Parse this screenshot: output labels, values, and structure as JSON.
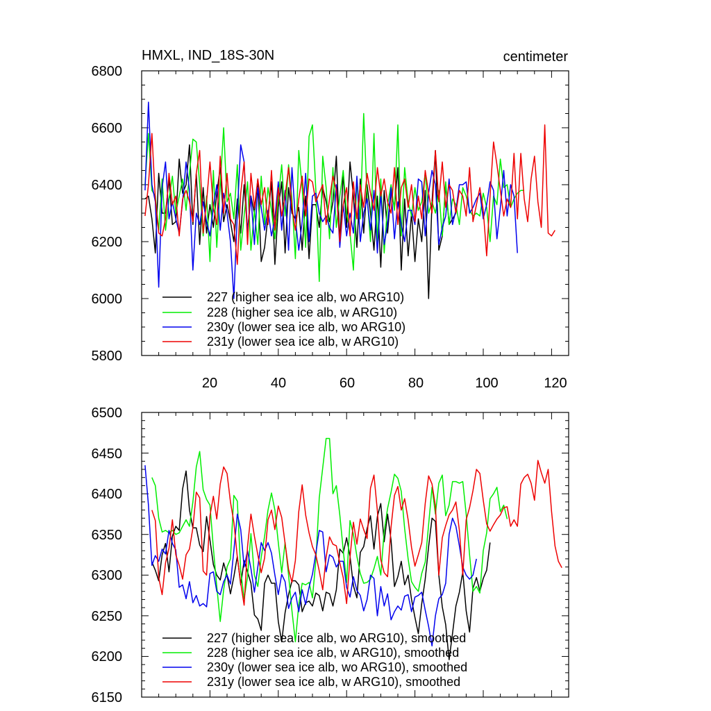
{
  "chart_data": [
    {
      "type": "line",
      "title_left": "HMXL, IND_18S-30N",
      "title_right": "centimeter",
      "xlabel": "",
      "ylabel": "",
      "xlim": [
        0,
        125
      ],
      "ylim": [
        5800,
        6800
      ],
      "x_major_ticks": [
        20,
        40,
        60,
        80,
        100,
        120
      ],
      "x_tick_labels": [
        "20",
        "40",
        "60",
        "80",
        "100",
        "120"
      ],
      "y_major_ticks": [
        5800,
        6000,
        6200,
        6400,
        6600,
        6800
      ],
      "y_tick_labels": [
        "5800",
        "6000",
        "6200",
        "6400",
        "6600",
        "6800"
      ],
      "legend_position": "bottom-left",
      "series": [
        {
          "name": "227 (higher sea ice alb, wo ARG10)",
          "color": "#000000",
          "x_start": 1,
          "values": [
            6350,
            6360,
            6280,
            6160,
            6440,
            6300,
            6300,
            6420,
            6260,
            6270,
            6490,
            6370,
            6400,
            6540,
            6260,
            6440,
            6190,
            6390,
            6230,
            6330,
            6250,
            6370,
            6460,
            6270,
            6330,
            6270,
            6200,
            6350,
            6230,
            6400,
            6240,
            6360,
            6300,
            6420,
            6130,
            6180,
            6290,
            6410,
            6120,
            6320,
            6410,
            6160,
            6390,
            6300,
            6280,
            6320,
            6170,
            6360,
            6140,
            6330,
            6330,
            6250,
            6390,
            6340,
            6270,
            6340,
            6500,
            6200,
            6440,
            6250,
            6480,
            6360,
            6180,
            6420,
            6230,
            6400,
            6300,
            6170,
            6360,
            6110,
            6380,
            6230,
            6380,
            6320,
            6460,
            6100,
            6350,
            6150,
            6300,
            6130,
            6280,
            6200,
            6380,
            6000,
            6340,
            6520,
            6170,
            6220,
            6400,
            6260,
            6280,
            6300
          ]
        },
        {
          "name": "228 (higher sea ice alb, w ARG10)",
          "color": "#00ee00",
          "x_start": 1,
          "values": [
            6400,
            6580,
            6380,
            6360,
            6240,
            6420,
            6240,
            6350,
            6430,
            6300,
            6360,
            6420,
            6310,
            6440,
            6560,
            6550,
            6400,
            6220,
            6360,
            6130,
            6450,
            6180,
            6400,
            6600,
            6340,
            6370,
            6280,
            6470,
            6170,
            6290,
            6410,
            6170,
            6310,
            6190,
            6430,
            6260,
            6390,
            6310,
            6210,
            6350,
            6470,
            6290,
            6470,
            6350,
            6140,
            6520,
            6390,
            6180,
            6570,
            6610,
            6380,
            6060,
            6500,
            6390,
            6210,
            6460,
            6250,
            6360,
            6450,
            6300,
            6230,
            6100,
            6420,
            6280,
            6650,
            6360,
            6200,
            6580,
            6200,
            6420,
            6160,
            6330,
            6400,
            6310,
            6610,
            6220,
            6460,
            6340,
            6290,
            6390,
            6310,
            6340,
            6440,
            6300,
            6340,
            6300,
            6380,
            6220,
            6410,
            6260,
            6350,
            6330,
            6260,
            6390,
            6360,
            6310,
            6290,
            6300,
            6290,
            6370,
            6320,
            6200,
            6360,
            6330,
            6490,
            6390,
            6400,
            6320,
            6350,
            6370,
            6380,
            6380
          ]
        },
        {
          "name": "230y (lower sea ice alb, wo ARG10)",
          "color": "#0000ee",
          "x_start": 1,
          "values": [
            6380,
            6690,
            6400,
            6340,
            6040,
            6390,
            6480,
            6280,
            6340,
            6280,
            6230,
            6340,
            6480,
            6380,
            6100,
            6300,
            6260,
            6340,
            6270,
            6220,
            6320,
            6400,
            6240,
            6370,
            6300,
            6200,
            6000,
            6300,
            6540,
            6480,
            6230,
            6360,
            6190,
            6390,
            6320,
            6240,
            6310,
            6220,
            6280,
            6410,
            6240,
            6380,
            6170,
            6460,
            6280,
            6170,
            6270,
            6440,
            6200,
            6360,
            6370,
            6300,
            6270,
            6290,
            6250,
            6230,
            6400,
            6180,
            6330,
            6220,
            6300,
            6230,
            6430,
            6200,
            6300,
            6350,
            6240,
            6380,
            6160,
            6370,
            6190,
            6260,
            6390,
            6210,
            6340,
            6260,
            6200,
            6310,
            6310,
            6260,
            6420,
            6410,
            6220,
            6370,
            6450,
            6400,
            6190,
            6250,
            6290,
            6420,
            6260,
            6310,
            6400,
            6400,
            6410,
            6300,
            6320,
            6350,
            6370,
            6280,
            6330,
            6410,
            6380,
            6210,
            6320,
            6450,
            6290,
            6400,
            6360,
            6160
          ]
        },
        {
          "name": "231y (lower sea ice alb, w ARG10)",
          "color": "#ee0000",
          "x_start": 1,
          "values": [
            6290,
            6400,
            6580,
            6350,
            6230,
            6220,
            6280,
            6440,
            6330,
            6360,
            6220,
            6350,
            6380,
            6340,
            6270,
            6440,
            6520,
            6230,
            6340,
            6480,
            6320,
            6260,
            6500,
            6300,
            6440,
            6280,
            6260,
            6120,
            6370,
            6480,
            6190,
            6440,
            6320,
            6420,
            6330,
            6390,
            6260,
            6450,
            6240,
            6390,
            6290,
            6360,
            6460,
            6320,
            6240,
            6350,
            6430,
            6290,
            6420,
            6410,
            6340,
            6370,
            6400,
            6260,
            6350,
            6430,
            6380,
            6200,
            6330,
            6390,
            6220,
            6410,
            6280,
            6400,
            6320,
            6440,
            6370,
            6310,
            6460,
            6360,
            6420,
            6340,
            6300,
            6460,
            6260,
            6390,
            6420,
            6320,
            6400,
            6270,
            6360,
            6280,
            6450,
            6370,
            6300,
            6520,
            6340,
            6480,
            6320,
            6400,
            6380,
            6300,
            6380,
            6360,
            6290,
            6460,
            6270,
            6330,
            6390,
            6310,
            6150,
            6360,
            6550,
            6470,
            6380,
            6290,
            6350,
            6320,
            6510,
            6280,
            6510,
            6350,
            6270,
            6420,
            6500,
            6340,
            6250,
            6610,
            6230,
            6220,
            6240
          ]
        }
      ]
    },
    {
      "type": "line",
      "xlabel": "",
      "ylabel": "",
      "xlim": [
        0,
        125
      ],
      "ylim": [
        6150,
        6500
      ],
      "x_major_ticks": [
        20,
        40,
        60,
        80,
        100,
        120
      ],
      "y_major_ticks": [
        6150,
        6200,
        6250,
        6300,
        6350,
        6400,
        6450,
        6500
      ],
      "y_tick_labels": [
        "6150",
        "6200",
        "6250",
        "6300",
        "6350",
        "6400",
        "6450",
        "6500"
      ],
      "legend_position": "bottom-left",
      "series": [
        {
          "name": "227 (higher sea ice alb, wo ARG10), smoothed",
          "color": "#000000",
          "x_start": 3,
          "values": [
            6316,
            6306,
            6293,
            6325,
            6339,
            6304,
            6348,
            6360,
            6355,
            6406,
            6428,
            6380,
            6358,
            6358,
            6337,
            6329,
            6372,
            6343,
            6313,
            6300,
            6294,
            6315,
            6300,
            6277,
            6298,
            6323,
            6288,
            6318,
            6304,
            6290,
            6251,
            6246,
            6232,
            6290,
            6300,
            6290,
            6290,
            6243,
            6218,
            6254,
            6276,
            6293,
            6293,
            6288,
            6255,
            6266,
            6268,
            6262,
            6278,
            6275,
            6256,
            6279,
            6277,
            6262,
            6282,
            6332,
            6327,
            6346,
            6323,
            6287,
            6272,
            6328,
            6335,
            6357,
            6373,
            6332,
            6372,
            6388,
            6341,
            6375,
            6343,
            6286,
            6298,
            6317,
            6288,
            6300,
            6270,
            6248,
            6228,
            6265,
            6295,
            6335,
            6370,
            6366,
            6300,
            6261,
            6239,
            6196,
            6228,
            6262,
            6279,
            6304,
            6256,
            6230,
            6284,
            6297,
            6280,
            6296,
            6306,
            6340
          ]
        },
        {
          "name": "228 (higher sea ice alb, w ARG10), smoothed",
          "color": "#00ee00",
          "x_start": 3,
          "values": [
            6420,
            6410,
            6370,
            6353,
            6355,
            6352,
            6355,
            6350,
            6352,
            6360,
            6368,
            6360,
            6390,
            6433,
            6452,
            6405,
            6393,
            6386,
            6333,
            6286,
            6243,
            6282,
            6310,
            6320,
            6398,
            6391,
            6305,
            6271,
            6298,
            6351,
            6300,
            6286,
            6322,
            6348,
            6380,
            6401,
            6380,
            6340,
            6303,
            6340,
            6300,
            6256,
            6218,
            6264,
            6290,
            6288,
            6291,
            6272,
            6318,
            6395,
            6432,
            6468,
            6468,
            6400,
            6410,
            6374,
            6331,
            6291,
            6367,
            6350,
            6323,
            6302,
            6290,
            6291,
            6295,
            6308,
            6323,
            6300,
            6354,
            6382,
            6402,
            6424,
            6419,
            6403,
            6357,
            6320,
            6292,
            6285,
            6280,
            6302,
            6316,
            6362,
            6408,
            6375,
            6413,
            6423,
            6373,
            6386,
            6415,
            6415,
            6413,
            6415,
            6375,
            6325,
            6280,
            6286,
            6278,
            6330,
            6352,
            6394,
            6400,
            6408,
            6378,
            6386,
            6369
          ]
        },
        {
          "name": "230y (lower sea ice alb, wo ARG10), smoothed",
          "color": "#0000ee",
          "x_start": 1,
          "values": [
            6435,
            6386,
            6312,
            6324,
            6317,
            6332,
            6326,
            6355,
            6339,
            6331,
            6285,
            6288,
            6271,
            6292,
            6266,
            6275,
            6262,
            6265,
            6261,
            6302,
            6304,
            6280,
            6276,
            6292,
            6300,
            6289,
            6330,
            6375,
            6356,
            6310,
            6330,
            6308,
            6279,
            6310,
            6340,
            6330,
            6340,
            6327,
            6300,
            6276,
            6301,
            6292,
            6259,
            6272,
            6279,
            6255,
            6282,
            6264,
            6285,
            6301,
            6327,
            6355,
            6353,
            6304,
            6325,
            6322,
            6310,
            6317,
            6317,
            6285,
            6273,
            6298,
            6281,
            6275,
            6256,
            6270,
            6300,
            6296,
            6250,
            6286,
            6262,
            6277,
            6245,
            6255,
            6262,
            6257,
            6274,
            6276,
            6255,
            6273,
            6275,
            6279,
            6257,
            6237,
            6213,
            6250,
            6271,
            6276,
            6290,
            6350,
            6370,
            6360,
            6336,
            6310,
            6300,
            6295,
            6300,
            6320
          ]
        },
        {
          "name": "231y (lower sea ice alb, w ARG10), smoothed",
          "color": "#ee0000",
          "x_start": 3,
          "values": [
            6380,
            6367,
            6297,
            6276,
            6315,
            6333,
            6368,
            6325,
            6312,
            6295,
            6325,
            6332,
            6358,
            6402,
            6395,
            6305,
            6300,
            6373,
            6397,
            6369,
            6412,
            6433,
            6425,
            6390,
            6365,
            6322,
            6290,
            6263,
            6335,
            6375,
            6348,
            6325,
            6303,
            6321,
            6368,
            6380,
            6356,
            6385,
            6371,
            6339,
            6307,
            6291,
            6318,
            6378,
            6411,
            6374,
            6352,
            6335,
            6325,
            6305,
            6282,
            6322,
            6347,
            6338,
            6336,
            6315,
            6297,
            6265,
            6322,
            6365,
            6338,
            6369,
            6356,
            6345,
            6407,
            6423,
            6379,
            6319,
            6303,
            6298,
            6359,
            6398,
            6409,
            6380,
            6394,
            6368,
            6334,
            6311,
            6325,
            6340,
            6388,
            6422,
            6412,
            6385,
            6300,
            6346,
            6361,
            6374,
            6380,
            6390,
            6355,
            6300,
            6368,
            6383,
            6404,
            6430,
            6425,
            6392,
            6363,
            6354,
            6362,
            6369,
            6374,
            6383,
            6384,
            6360,
            6368,
            6360,
            6412,
            6420,
            6424,
            6413,
            6392,
            6441,
            6426,
            6413,
            6430,
            6378,
            6336,
            6317,
            6309
          ]
        }
      ]
    }
  ]
}
